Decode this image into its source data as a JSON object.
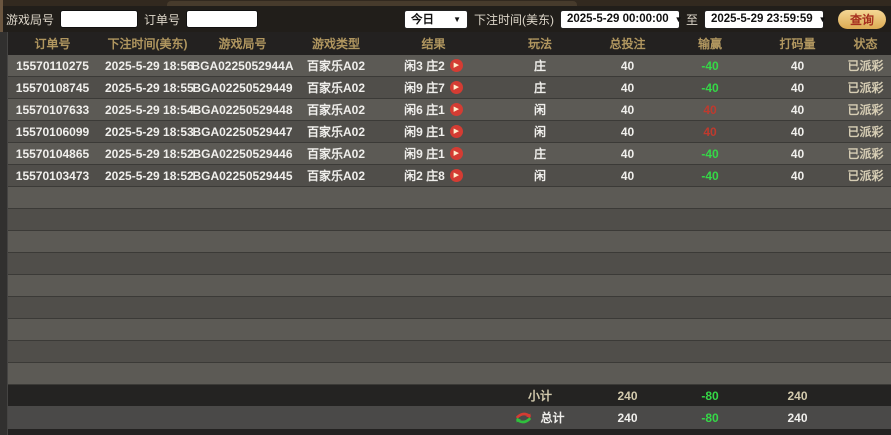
{
  "toolbar": {
    "game_round_label": "游戏局号",
    "game_round_value": "",
    "order_no_label": "订单号",
    "order_no_value": "",
    "range_preset": "今日",
    "bet_time_label": "下注时间(美东)",
    "start_time": "2025-5-29 00:00:00",
    "to_label": "至",
    "end_time": "2025-5-29 23:59:59",
    "search_label": "查询",
    "dropdown_arrow_icon": "▼"
  },
  "table": {
    "columns": [
      "订单号",
      "下注时间(美东)",
      "游戏局号",
      "游戏类型",
      "结果",
      "玩法",
      "总投注",
      "输赢",
      "打码量",
      "状态"
    ],
    "rows": [
      {
        "order": "15570110275",
        "time": "2025-5-29 18:56",
        "round": "BGA0225052944A",
        "game": "百家乐A02",
        "result": "闲3 庄2",
        "play": "庄",
        "bet": "40",
        "winloss": "-40",
        "turnover": "40",
        "status": "已派彩"
      },
      {
        "order": "15570108745",
        "time": "2025-5-29 18:55",
        "round": "BGA02250529449",
        "game": "百家乐A02",
        "result": "闲9 庄7",
        "play": "庄",
        "bet": "40",
        "winloss": "-40",
        "turnover": "40",
        "status": "已派彩"
      },
      {
        "order": "15570107633",
        "time": "2025-5-29 18:54",
        "round": "BGA02250529448",
        "game": "百家乐A02",
        "result": "闲6 庄1",
        "play": "闲",
        "bet": "40",
        "winloss": "40",
        "turnover": "40",
        "status": "已派彩"
      },
      {
        "order": "15570106099",
        "time": "2025-5-29 18:53",
        "round": "BGA02250529447",
        "game": "百家乐A02",
        "result": "闲9 庄1",
        "play": "闲",
        "bet": "40",
        "winloss": "40",
        "turnover": "40",
        "status": "已派彩"
      },
      {
        "order": "15570104865",
        "time": "2025-5-29 18:52",
        "round": "BGA02250529446",
        "game": "百家乐A02",
        "result": "闲9 庄1",
        "play": "庄",
        "bet": "40",
        "winloss": "-40",
        "turnover": "40",
        "status": "已派彩"
      },
      {
        "order": "15570103473",
        "time": "2025-5-29 18:52",
        "round": "BGA02250529445",
        "game": "百家乐A02",
        "result": "闲2 庄8",
        "play": "闲",
        "bet": "40",
        "winloss": "-40",
        "turnover": "40",
        "status": "已派彩"
      }
    ],
    "subtotal": {
      "label": "小计",
      "bet": "240",
      "winloss": "-80",
      "turnover": "240"
    },
    "total": {
      "label": "总计",
      "bet": "240",
      "winloss": "-80",
      "turnover": "240"
    },
    "play_icon_glyph": "▶"
  },
  "colors": {
    "header_text": "#b0965f",
    "win_positive": "#bf3a2e",
    "loss_negative": "#35d847",
    "status_text": "#d6cdb4",
    "search_button_top": "#f4d795",
    "search_button_bottom": "#dcaa52",
    "search_button_text": "#a6301f",
    "play_icon_bg": "#d43c33"
  }
}
